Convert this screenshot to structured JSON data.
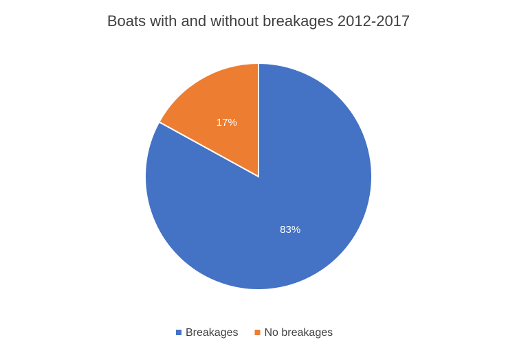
{
  "chart_data": {
    "type": "pie",
    "title": "Boats with and without breakages 2012-2017",
    "categories": [
      "Breakages",
      "No breakages"
    ],
    "values": [
      83,
      17
    ],
    "value_labels": [
      "83%",
      "17%"
    ],
    "colors": [
      "#4472c4",
      "#ed7d31"
    ],
    "legend": "bottom"
  }
}
